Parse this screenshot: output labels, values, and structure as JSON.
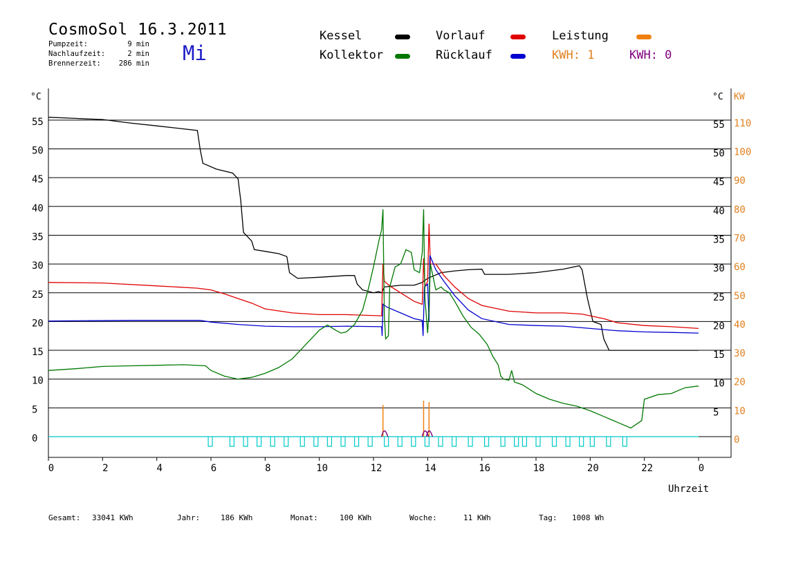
{
  "header": {
    "title": "CosmoSol 16.3.2011",
    "weekday": "Mi",
    "info": [
      {
        "label": "Pumpzeit:",
        "value": "9 min"
      },
      {
        "label": "Nachlaufzeit:",
        "value": "2 min"
      },
      {
        "label": "Brennerzeit:",
        "value": "286 min"
      }
    ]
  },
  "legend": [
    {
      "label": "Kessel",
      "color": "#000000",
      "text_color": "#000000"
    },
    {
      "label": "Vorlauf",
      "color": "#e00000",
      "text_color": "#000000"
    },
    {
      "label": "Leistung",
      "color": "#f08010",
      "text_color": "#000000"
    },
    {
      "label": "Kollektor",
      "color": "#007800",
      "text_color": "#000000"
    },
    {
      "label": "Rücklauf",
      "color": "#0000d0",
      "text_color": "#000000"
    },
    {
      "label": "KWH: 1",
      "color": null,
      "text_color": "#e08020"
    },
    {
      "label": "KWH: 0",
      "color": null,
      "text_color": "#800080"
    }
  ],
  "axes": {
    "left_unit": "°C",
    "right_unit": "°C",
    "right_unit2": "KW",
    "x_label": "Uhrzeit"
  },
  "footer": [
    {
      "label": "Gesamt:",
      "value": "33041 KWh"
    },
    {
      "label": "Jahr:",
      "value": "186 KWh"
    },
    {
      "label": "Monat:",
      "value": "100 KWh"
    },
    {
      "label": "Woche:",
      "value": "11 KWh"
    },
    {
      "label": "Tag:",
      "value": "1008 Wh"
    }
  ],
  "chart_data": {
    "type": "line",
    "xlabel": "Uhrzeit",
    "ylabel": "°C",
    "xlim": [
      0,
      24
    ],
    "ylim": [
      0,
      55
    ],
    "grid": true,
    "x_ticks": [
      "0",
      "2",
      "4",
      "6",
      "8",
      "10",
      "12",
      "14",
      "16",
      "18",
      "20",
      "22",
      "0"
    ],
    "y_left_ticks": [
      "0",
      "5",
      "10",
      "15",
      "20",
      "25",
      "30",
      "35",
      "40",
      "45",
      "50",
      "55"
    ],
    "y_right_ticks": [
      "5",
      "10",
      "15",
      "20",
      "25",
      "30",
      "35",
      "40",
      "45",
      "50",
      "55"
    ],
    "y_kw_ticks": [
      "0",
      "10",
      "20",
      "30",
      "40",
      "50",
      "60",
      "70",
      "80",
      "90",
      "100",
      "110"
    ],
    "series": [
      {
        "name": "Kessel",
        "color": "#000000",
        "points": [
          [
            0,
            55.5
          ],
          [
            1,
            55.3
          ],
          [
            2,
            55.1
          ],
          [
            3,
            54.5
          ],
          [
            4,
            54.0
          ],
          [
            5.5,
            53.2
          ],
          [
            5.6,
            50
          ],
          [
            5.7,
            47.5
          ],
          [
            6.2,
            46.5
          ],
          [
            6.8,
            45.8
          ],
          [
            7.0,
            44.8
          ],
          [
            7.1,
            41
          ],
          [
            7.2,
            35.5
          ],
          [
            7.5,
            34
          ],
          [
            7.6,
            32.5
          ],
          [
            8,
            32.2
          ],
          [
            8.5,
            31.8
          ],
          [
            8.8,
            31.3
          ],
          [
            8.9,
            28.5
          ],
          [
            9.2,
            27.5
          ],
          [
            10,
            27.7
          ],
          [
            11,
            28
          ],
          [
            11.3,
            28
          ],
          [
            11.4,
            26.5
          ],
          [
            11.6,
            25.5
          ],
          [
            12,
            25
          ],
          [
            12.2,
            25.2
          ],
          [
            12.3,
            25
          ],
          [
            12.4,
            26
          ],
          [
            13,
            26.3
          ],
          [
            13.5,
            26.3
          ],
          [
            13.8,
            26.8
          ],
          [
            14,
            27.5
          ],
          [
            14.5,
            28.5
          ],
          [
            15,
            28.8
          ],
          [
            15.5,
            29
          ],
          [
            16,
            29.1
          ],
          [
            16.1,
            28.2
          ],
          [
            17,
            28.2
          ],
          [
            18,
            28.5
          ],
          [
            19,
            29.1
          ],
          [
            19.6,
            29.7
          ],
          [
            19.7,
            29
          ],
          [
            19.9,
            24
          ],
          [
            20.1,
            20
          ],
          [
            20.4,
            19.5
          ],
          [
            20.5,
            17
          ],
          [
            20.7,
            15
          ],
          [
            22,
            15
          ],
          [
            23,
            15
          ],
          [
            24,
            15
          ]
        ]
      },
      {
        "name": "Vorlauf",
        "color": "#e00000",
        "points": [
          [
            0,
            26.8
          ],
          [
            2,
            26.7
          ],
          [
            4,
            26.2
          ],
          [
            5.5,
            25.8
          ],
          [
            6,
            25.5
          ],
          [
            6.5,
            24.8
          ],
          [
            7,
            24
          ],
          [
            7.5,
            23.2
          ],
          [
            8,
            22.2
          ],
          [
            9,
            21.5
          ],
          [
            10,
            21.2
          ],
          [
            11,
            21.2
          ],
          [
            12.3,
            21
          ],
          [
            12.35,
            30
          ],
          [
            12.4,
            27
          ],
          [
            12.6,
            26.2
          ],
          [
            13,
            25
          ],
          [
            13.5,
            23.5
          ],
          [
            13.8,
            23
          ],
          [
            13.85,
            31
          ],
          [
            13.9,
            26
          ],
          [
            14,
            27
          ],
          [
            14.05,
            37
          ],
          [
            14.1,
            30
          ],
          [
            14.3,
            30
          ],
          [
            14.6,
            28
          ],
          [
            15,
            26
          ],
          [
            15.5,
            24
          ],
          [
            16,
            22.8
          ],
          [
            17,
            21.8
          ],
          [
            18,
            21.5
          ],
          [
            19,
            21.5
          ],
          [
            19.7,
            21.3
          ],
          [
            20,
            21
          ],
          [
            20.5,
            20.5
          ],
          [
            21,
            19.8
          ],
          [
            22,
            19.3
          ],
          [
            23,
            19.1
          ],
          [
            24,
            18.8
          ]
        ]
      },
      {
        "name": "Rücklauf",
        "color": "#0000d0",
        "points": [
          [
            0,
            20.1
          ],
          [
            3,
            20.2
          ],
          [
            5.6,
            20.2
          ],
          [
            6,
            19.9
          ],
          [
            7,
            19.5
          ],
          [
            8,
            19.2
          ],
          [
            9,
            19.1
          ],
          [
            10,
            19.1
          ],
          [
            11,
            19.2
          ],
          [
            12.3,
            19.1
          ],
          [
            12.32,
            17.5
          ],
          [
            12.35,
            23
          ],
          [
            12.5,
            22.5
          ],
          [
            13,
            21.5
          ],
          [
            13.5,
            20.5
          ],
          [
            13.8,
            20.2
          ],
          [
            13.83,
            17.5
          ],
          [
            13.88,
            26
          ],
          [
            14,
            26.5
          ],
          [
            14.05,
            20
          ],
          [
            14.08,
            31.5
          ],
          [
            14.3,
            29
          ],
          [
            14.6,
            27
          ],
          [
            15,
            24.5
          ],
          [
            15.5,
            22
          ],
          [
            16,
            20.5
          ],
          [
            17,
            19.5
          ],
          [
            18,
            19.3
          ],
          [
            19,
            19.2
          ],
          [
            20,
            18.8
          ],
          [
            21,
            18.4
          ],
          [
            22,
            18.2
          ],
          [
            23,
            18.1
          ],
          [
            24,
            18
          ]
        ]
      },
      {
        "name": "Kollektor",
        "color": "#007800",
        "points": [
          [
            0,
            11.5
          ],
          [
            1,
            11.8
          ],
          [
            2,
            12.2
          ],
          [
            3,
            12.3
          ],
          [
            4,
            12.4
          ],
          [
            5,
            12.5
          ],
          [
            5.8,
            12.3
          ],
          [
            6,
            11.5
          ],
          [
            6.5,
            10.5
          ],
          [
            7,
            10
          ],
          [
            7.5,
            10.3
          ],
          [
            8,
            11
          ],
          [
            8.5,
            12
          ],
          [
            9,
            13.5
          ],
          [
            9.5,
            16
          ],
          [
            10,
            18.5
          ],
          [
            10.3,
            19.4
          ],
          [
            10.6,
            18.5
          ],
          [
            10.8,
            18
          ],
          [
            11,
            18.2
          ],
          [
            11.3,
            19.5
          ],
          [
            11.6,
            22
          ],
          [
            11.8,
            25.5
          ],
          [
            12,
            29.5
          ],
          [
            12.2,
            34
          ],
          [
            12.3,
            36
          ],
          [
            12.35,
            39.5
          ],
          [
            12.4,
            21
          ],
          [
            12.45,
            17
          ],
          [
            12.55,
            17.5
          ],
          [
            12.6,
            26
          ],
          [
            12.8,
            29.5
          ],
          [
            13,
            30
          ],
          [
            13.2,
            32.5
          ],
          [
            13.4,
            32
          ],
          [
            13.5,
            29
          ],
          [
            13.7,
            28.5
          ],
          [
            13.8,
            32
          ],
          [
            13.85,
            39.5
          ],
          [
            13.9,
            24
          ],
          [
            14,
            18
          ],
          [
            14.05,
            22
          ],
          [
            14.1,
            30
          ],
          [
            14.3,
            25.5
          ],
          [
            14.5,
            26
          ],
          [
            14.6,
            25.5
          ],
          [
            14.8,
            25
          ],
          [
            15,
            23.5
          ],
          [
            15.3,
            21
          ],
          [
            15.6,
            19
          ],
          [
            15.9,
            17.8
          ],
          [
            16.2,
            16
          ],
          [
            16.4,
            14
          ],
          [
            16.6,
            12.5
          ],
          [
            16.7,
            10.5
          ],
          [
            16.8,
            10
          ],
          [
            17,
            9.8
          ],
          [
            17.1,
            11.5
          ],
          [
            17.2,
            9.5
          ],
          [
            17.5,
            9
          ],
          [
            18,
            7.5
          ],
          [
            18.5,
            6.5
          ],
          [
            19,
            5.8
          ],
          [
            19.5,
            5.3
          ],
          [
            20,
            4.5
          ],
          [
            20.5,
            3.5
          ],
          [
            21,
            2.5
          ],
          [
            21.5,
            1.5
          ],
          [
            21.9,
            2.8
          ],
          [
            22,
            6.5
          ],
          [
            22.5,
            7.3
          ],
          [
            23,
            7.5
          ],
          [
            23.5,
            8.5
          ],
          [
            24,
            8.8
          ]
        ]
      }
    ],
    "leistung": {
      "name": "Leistung",
      "color": "#f08010",
      "unit": "KW",
      "spikes": [
        [
          12.35,
          11
        ],
        [
          13.85,
          12.5
        ],
        [
          14.05,
          12
        ]
      ]
    },
    "kwh_lines": {
      "color": "#800080",
      "bumps": [
        [
          12.4,
          3
        ],
        [
          13.9,
          3
        ],
        [
          14.05,
          3
        ]
      ]
    },
    "pump_line": {
      "color": "#00c8c8",
      "value": 0
    }
  }
}
